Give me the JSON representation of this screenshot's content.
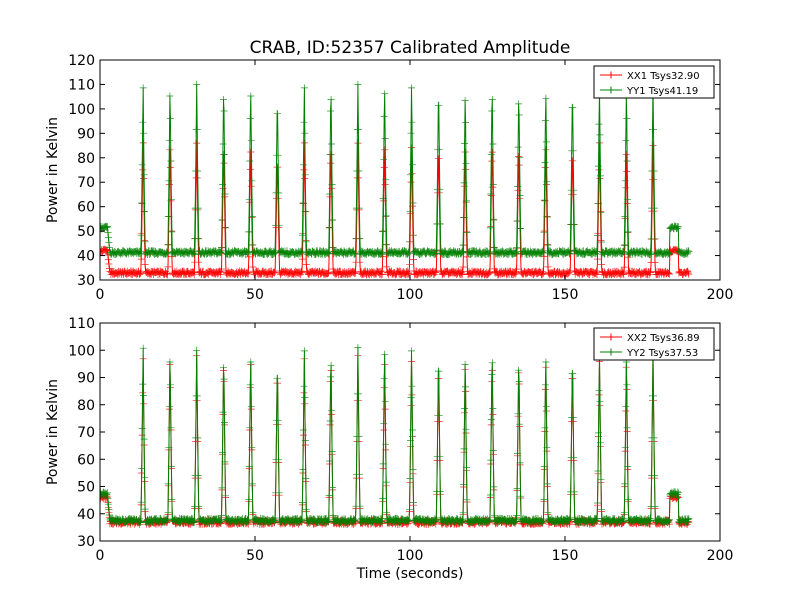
{
  "figure_title": "CRAB, ID:52357 Calibrated Amplitude",
  "chart_data": [
    {
      "type": "line",
      "title": "CRAB, ID:52357 Calibrated Amplitude",
      "xlabel": "",
      "ylabel": "Power in Kelvin",
      "xlim": [
        0,
        200
      ],
      "ylim": [
        30,
        120
      ],
      "xticks": [
        "0",
        "50",
        "100",
        "150",
        "200"
      ],
      "yticks": [
        "30",
        "40",
        "50",
        "60",
        "70",
        "80",
        "90",
        "100",
        "110",
        "120"
      ],
      "grid": false,
      "legend": "top-right",
      "spike_times": [
        13.9,
        22.6,
        31.2,
        39.9,
        48.6,
        57.2,
        65.9,
        74.5,
        83.2,
        91.8,
        100.5,
        109.2,
        117.8,
        126.5,
        135.1,
        143.8,
        152.4,
        161.1,
        169.8,
        178.4
      ],
      "series": [
        {
          "name": "XX1 Tsys32.90",
          "color": "#ff0000",
          "baseline": 32.9,
          "peaks": [
            88,
            87,
            86,
            87,
            86,
            83,
            88,
            87,
            86,
            87,
            86,
            87,
            86,
            88,
            86,
            87,
            86,
            88,
            85,
            85
          ],
          "start_level": 42,
          "start_range": [
            0,
            2.4
          ],
          "end_bump": {
            "x_range": [
              183.8,
              186.6
            ],
            "level": 42
          }
        },
        {
          "name": "YY1 Tsys41.19",
          "color": "#008000",
          "baseline": 41.19,
          "peaks": [
            111,
            110,
            110,
            111,
            110,
            107,
            111,
            111,
            110,
            111,
            111,
            111,
            108,
            111,
            109,
            109,
            110,
            110,
            110,
            110
          ],
          "start_level": 51.5,
          "start_range": [
            0,
            2.4
          ],
          "end_bump": {
            "x_range": [
              183.8,
              186.6
            ],
            "level": 51.5
          }
        }
      ]
    },
    {
      "type": "line",
      "title": "",
      "xlabel": "Time (seconds)",
      "ylabel": "Power in Kelvin",
      "xlim": [
        0,
        200
      ],
      "ylim": [
        30,
        110
      ],
      "xticks": [
        "0",
        "50",
        "100",
        "150",
        "200"
      ],
      "yticks": [
        "30",
        "40",
        "50",
        "60",
        "70",
        "80",
        "90",
        "100",
        "110"
      ],
      "grid": false,
      "legend": "top-right",
      "spike_times": [
        13.9,
        22.6,
        31.2,
        39.9,
        48.6,
        57.2,
        65.9,
        74.5,
        83.2,
        91.8,
        100.5,
        109.2,
        117.8,
        126.5,
        135.1,
        143.8,
        152.4,
        161.1,
        169.8,
        178.4
      ],
      "series": [
        {
          "name": "XX2 Tsys36.89",
          "color": "#ff0000",
          "baseline": 36.89,
          "peaks": [
            99,
            99,
            98,
            99,
            99,
            96,
            99,
            99,
            98,
            99,
            98,
            98,
            97,
            99,
            98,
            98,
            98,
            98,
            98,
            98
          ],
          "start_level": 46,
          "start_range": [
            0,
            2.4
          ],
          "end_bump": {
            "x_range": [
              183.8,
              186.6
            ],
            "level": 46
          }
        },
        {
          "name": "YY2 Tsys37.53",
          "color": "#008000",
          "baseline": 37.53,
          "peaks": [
            103,
            100,
            100,
            100,
            100,
            98,
            102,
            101,
            101,
            103,
            102,
            101,
            99,
            102,
            99,
            100,
            100,
            100,
            100,
            100
          ],
          "start_level": 47.5,
          "start_range": [
            0,
            2.4
          ],
          "end_bump": {
            "x_range": [
              183.8,
              186.6
            ],
            "level": 47.5
          }
        }
      ]
    }
  ]
}
